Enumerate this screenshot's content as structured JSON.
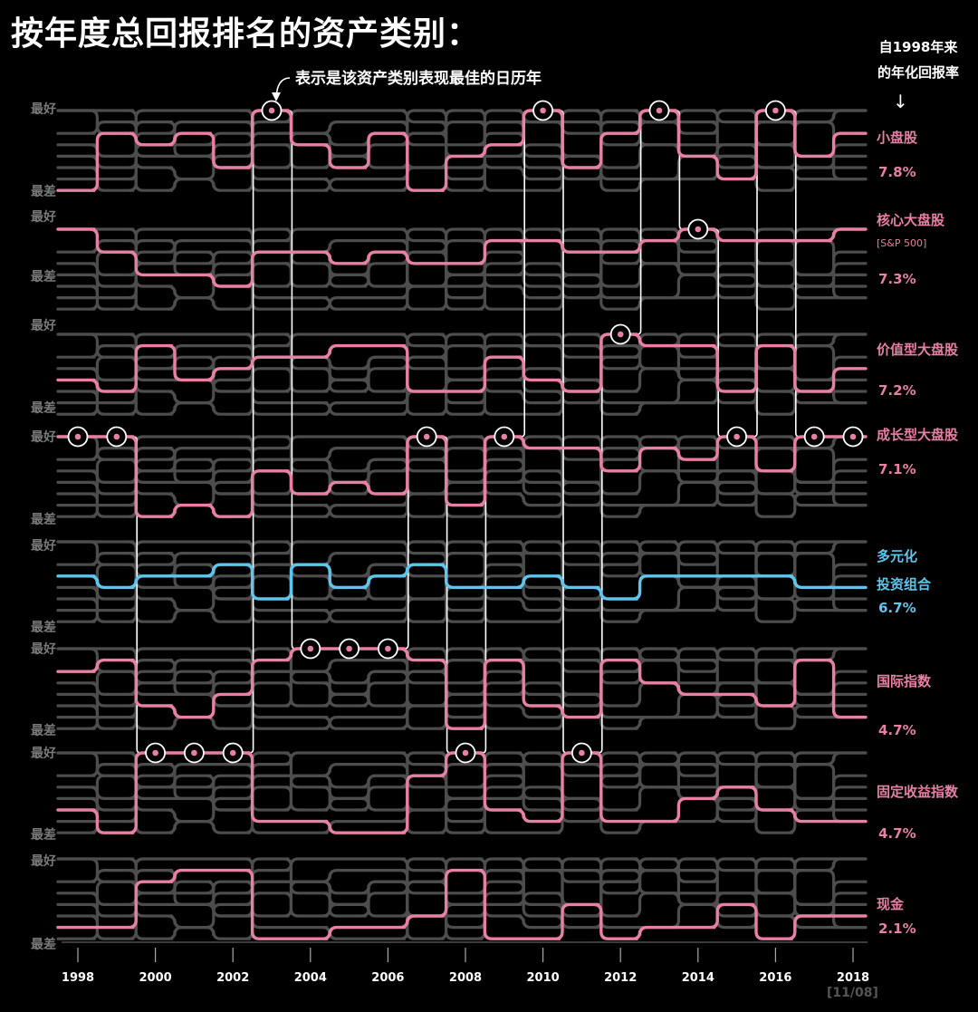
{
  "title": "按年度总回报排名的资产类别：",
  "callout": "表示是该资产类别表现最佳的日历年",
  "note": [
    "自1998年来",
    "的年化回报率"
  ],
  "source": "[11/08]",
  "colors": {
    "background": "#000000",
    "grid": "#4d4d4d",
    "highlight": "#e87fa4",
    "diversified": "#5ec6ec",
    "best_marker": "#ffffff"
  },
  "chart_data": {
    "type": "bump",
    "x_label": "",
    "y_label": "",
    "years": [
      1998,
      1999,
      2000,
      2001,
      2002,
      2003,
      2004,
      2005,
      2006,
      2007,
      2008,
      2009,
      2010,
      2011,
      2012,
      2013,
      2014,
      2015,
      2016,
      2017,
      2018
    ],
    "x_ticks": [
      "1998",
      "2000",
      "2002",
      "2004",
      "2006",
      "2008",
      "2010",
      "2012",
      "2014",
      "2016",
      "2018"
    ],
    "rank_labels": {
      "best": "最好",
      "worst": "最差"
    },
    "series": [
      {
        "name": "小盘股",
        "subtitle": "",
        "annualized_return": "7.8%",
        "ranks": [
          8,
          3,
          4,
          3,
          6,
          1,
          4,
          6,
          3,
          8,
          5,
          4,
          1,
          6,
          3,
          1,
          5,
          7,
          1,
          5,
          3
        ],
        "best_years": [
          2003,
          2010,
          2013,
          2016
        ]
      },
      {
        "name": "核心大盘股",
        "subtitle": "[S&P 500]",
        "annualized_return": "7.3%",
        "ranks": [
          1,
          3,
          5,
          5,
          6,
          3,
          3,
          4,
          3,
          4,
          4,
          2,
          2,
          3,
          3,
          2,
          1,
          2,
          2,
          2,
          1
        ],
        "best_years": [
          2014
        ]
      },
      {
        "name": "价值型大盘股",
        "subtitle": "",
        "annualized_return": "7.2%",
        "ranks": [
          5,
          6,
          2,
          5,
          4,
          3,
          3,
          2,
          2,
          6,
          6,
          3,
          5,
          6,
          1,
          2,
          2,
          6,
          2,
          6,
          4
        ],
        "best_years": [
          2012
        ]
      },
      {
        "name": "成长型大盘股",
        "subtitle": "",
        "annualized_return": "7.1%",
        "ranks": [
          1,
          1,
          8,
          7,
          8,
          4,
          6,
          5,
          6,
          1,
          7,
          1,
          2,
          2,
          4,
          2,
          3,
          1,
          4,
          1,
          1
        ],
        "best_years": [
          1998,
          1999,
          2007,
          2009,
          2015,
          2017,
          2018
        ]
      },
      {
        "name": "多元化投资组合",
        "subtitle": "",
        "annualized_return": "6.7%",
        "ranks": [
          4,
          5,
          4,
          4,
          3,
          6,
          3,
          5,
          4,
          3,
          5,
          5,
          4,
          5,
          6,
          4,
          4,
          4,
          4,
          5,
          5
        ]
      },
      {
        "name": "国际指数",
        "subtitle": "",
        "annualized_return": "4.7%",
        "ranks": [
          3,
          2,
          6,
          7,
          5,
          2,
          1,
          1,
          1,
          2,
          8,
          2,
          6,
          7,
          2,
          4,
          5,
          5,
          6,
          2,
          7
        ],
        "best_years": [
          2004,
          2005,
          2006
        ]
      },
      {
        "name": "固定收益指数",
        "subtitle": "",
        "annualized_return": "4.7%",
        "ranks": [
          6,
          8,
          1,
          1,
          1,
          7,
          7,
          8,
          8,
          3,
          1,
          6,
          7,
          1,
          7,
          7,
          5,
          4,
          6,
          7,
          7
        ],
        "best_years": [
          2000,
          2001,
          2002,
          2008,
          2011
        ]
      },
      {
        "name": "现金",
        "subtitle": "",
        "annualized_return": "2.1%",
        "ranks": [
          7,
          7,
          3,
          2,
          2,
          8,
          8,
          7,
          7,
          6,
          2,
          8,
          8,
          5,
          8,
          7,
          7,
          5,
          8,
          6,
          6
        ]
      }
    ]
  }
}
